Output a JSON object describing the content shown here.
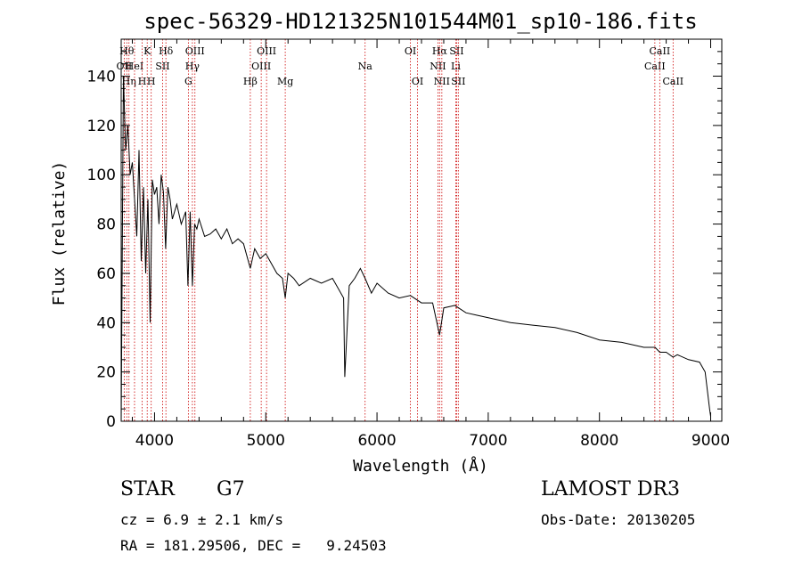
{
  "chart_data": {
    "type": "line",
    "title": "spec-56329-HD121325N101544M01_sp10-186.fits",
    "xlabel": "Wavelength (Å)",
    "ylabel": "Flux (relative)",
    "xlim": [
      3700,
      9100
    ],
    "ylim": [
      0,
      155
    ],
    "xticks": [
      4000,
      5000,
      6000,
      7000,
      8000,
      9000
    ],
    "yticks": [
      0,
      20,
      40,
      60,
      80,
      100,
      120,
      140
    ],
    "series": [
      {
        "name": "spectrum",
        "x": [
          3700,
          3720,
          3740,
          3760,
          3780,
          3800,
          3820,
          3840,
          3860,
          3880,
          3900,
          3920,
          3940,
          3960,
          3970,
          3980,
          4000,
          4020,
          4040,
          4060,
          4080,
          4100,
          4120,
          4140,
          4160,
          4200,
          4240,
          4280,
          4300,
          4320,
          4340,
          4360,
          4380,
          4400,
          4450,
          4500,
          4550,
          4600,
          4650,
          4700,
          4750,
          4800,
          4861,
          4900,
          4950,
          5000,
          5050,
          5100,
          5150,
          5175,
          5200,
          5250,
          5300,
          5400,
          5500,
          5600,
          5700,
          5710,
          5750,
          5800,
          5850,
          5893,
          5950,
          6000,
          6100,
          6200,
          6300,
          6400,
          6500,
          6563,
          6600,
          6700,
          6800,
          6900,
          7000,
          7100,
          7200,
          7400,
          7600,
          7800,
          8000,
          8200,
          8400,
          8500,
          8542,
          8600,
          8662,
          8700,
          8800,
          8900,
          8950,
          8990,
          9000
        ],
        "values": [
          0,
          140,
          110,
          120,
          100,
          105,
          90,
          75,
          110,
          65,
          95,
          60,
          90,
          40,
          70,
          98,
          92,
          95,
          80,
          100,
          93,
          70,
          95,
          90,
          82,
          88,
          80,
          85,
          55,
          85,
          55,
          80,
          78,
          82,
          75,
          76,
          78,
          74,
          78,
          72,
          74,
          72,
          62,
          70,
          66,
          68,
          64,
          60,
          58,
          50,
          60,
          58,
          55,
          58,
          56,
          58,
          50,
          18,
          55,
          58,
          62,
          58,
          52,
          56,
          52,
          50,
          51,
          48,
          48,
          35,
          46,
          47,
          44,
          43,
          42,
          41,
          40,
          39,
          38,
          36,
          33,
          32,
          30,
          30,
          28,
          28,
          26,
          27,
          25,
          24,
          20,
          5,
          2
        ]
      }
    ],
    "lines": [
      {
        "wave": 3727,
        "label": "OII",
        "row": 2
      },
      {
        "wave": 3750,
        "label": "Hθ",
        "row": 1
      },
      {
        "wave": 3770,
        "label": "Hη",
        "row": 3
      },
      {
        "wave": 3820,
        "label": "HeI",
        "row": 2
      },
      {
        "wave": 3889,
        "label": "H",
        "row": 3
      },
      {
        "wave": 3934,
        "label": "K",
        "row": 1
      },
      {
        "wave": 3970,
        "label": "H",
        "row": 3
      },
      {
        "wave": 4072,
        "label": "SII",
        "row": 2
      },
      {
        "wave": 4102,
        "label": "Hδ",
        "row": 1
      },
      {
        "wave": 4304,
        "label": "G",
        "row": 3
      },
      {
        "wave": 4340,
        "label": "Hγ",
        "row": 2
      },
      {
        "wave": 4363,
        "label": "OIII",
        "row": 1
      },
      {
        "wave": 4861,
        "label": "Hβ",
        "row": 3
      },
      {
        "wave": 4959,
        "label": "OIII",
        "row": 2
      },
      {
        "wave": 5007,
        "label": "OIII",
        "row": 1
      },
      {
        "wave": 5175,
        "label": "Mg",
        "row": 3
      },
      {
        "wave": 5893,
        "label": "Na",
        "row": 2
      },
      {
        "wave": 6300,
        "label": "OI",
        "row": 1
      },
      {
        "wave": 6364,
        "label": "OI",
        "row": 3
      },
      {
        "wave": 6548,
        "label": "NII",
        "row": 2
      },
      {
        "wave": 6563,
        "label": "Hα",
        "row": 1
      },
      {
        "wave": 6583,
        "label": "NII",
        "row": 3
      },
      {
        "wave": 6708,
        "label": "Li",
        "row": 2
      },
      {
        "wave": 6716,
        "label": "SII",
        "row": 1
      },
      {
        "wave": 6731,
        "label": "SII",
        "row": 3
      },
      {
        "wave": 8498,
        "label": "CaII",
        "row": 2
      },
      {
        "wave": 8542,
        "label": "CaII",
        "row": 1
      },
      {
        "wave": 8662,
        "label": "CaII",
        "row": 3
      }
    ],
    "line_color": "#cc0000"
  },
  "info": {
    "object_class": "STAR",
    "subclass": "G7",
    "survey": "LAMOST DR3",
    "cz": "cz = 6.9 ± 2.1 km/s",
    "obs_date": "Obs-Date: 20130205",
    "coords": "RA = 181.29506, DEC =   9.24503"
  }
}
